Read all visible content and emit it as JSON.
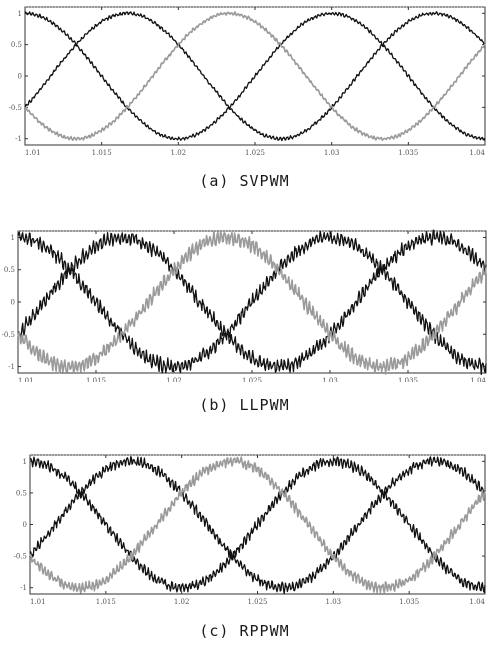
{
  "chart_data": [
    {
      "type": "line",
      "caption": "(a) SVPWM",
      "x_ticks": [
        "1.01",
        "1.015",
        "1.02",
        "1.025",
        "1.03",
        "1.035",
        "1.04"
      ],
      "xlim": [
        1.01,
        1.04
      ],
      "y_ticks": [
        "1",
        "0.5",
        "0",
        "-0.5",
        "-1"
      ],
      "ylim": [
        -1.1,
        1.1
      ],
      "period": 0.02,
      "ripple": 0.03,
      "series": [
        {
          "phase_deg": 0,
          "color": "#111111"
        },
        {
          "phase_deg": -120,
          "color": "#111111"
        },
        {
          "phase_deg": 120,
          "color": "#9a9a9a"
        }
      ]
    },
    {
      "type": "line",
      "caption": "(b) LLPWM",
      "x_ticks": [
        "1.01",
        "1.015",
        "1.02",
        "1.025",
        "1.03",
        "1.035",
        "1.04"
      ],
      "xlim": [
        1.01,
        1.04
      ],
      "y_ticks": [
        "1",
        "0.5",
        "0",
        "-0.5",
        "-1"
      ],
      "ylim": [
        -1.1,
        1.1
      ],
      "period": 0.02,
      "ripple": 0.12,
      "series": [
        {
          "phase_deg": 0,
          "color": "#111111"
        },
        {
          "phase_deg": -120,
          "color": "#111111"
        },
        {
          "phase_deg": 120,
          "color": "#9a9a9a"
        }
      ]
    },
    {
      "type": "line",
      "caption": "(c) RPPWM",
      "x_ticks": [
        "1.01",
        "1.015",
        "1.02",
        "1.025",
        "1.03",
        "1.035",
        "1.04"
      ],
      "xlim": [
        1.01,
        1.04
      ],
      "y_ticks": [
        "1",
        "0.5",
        "0",
        "-0.5",
        "-1"
      ],
      "ylim": [
        -1.1,
        1.1
      ],
      "period": 0.02,
      "ripple": 0.09,
      "series": [
        {
          "phase_deg": 0,
          "color": "#111111"
        },
        {
          "phase_deg": -120,
          "color": "#111111"
        },
        {
          "phase_deg": 120,
          "color": "#9a9a9a"
        }
      ]
    }
  ]
}
